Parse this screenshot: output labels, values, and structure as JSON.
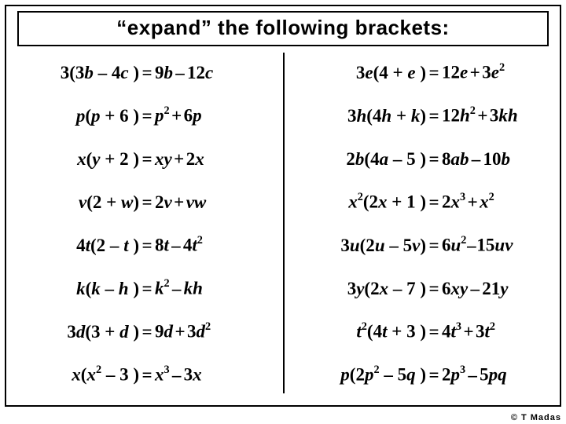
{
  "title": "“expand” the following brackets:",
  "footer": "© T Madas",
  "style": {
    "background_color": "#ffffff",
    "border_color": "#000000",
    "title_fontsize": 26,
    "row_fontsize": 23,
    "footer_fontsize": 11
  },
  "left": {
    "r1": {
      "lhs_pre": "3(3",
      "lhs_v1": "b",
      "lhs_mid": " – 4",
      "lhs_v2": "c",
      "lhs_post": " )",
      "rhs_a": "9",
      "rhs_av": "b",
      "rhs_op": "–",
      "rhs_b": "12",
      "rhs_bv": "c"
    },
    "r2": {
      "lhs_v1": "p",
      "lhs_mid1": "(",
      "lhs_v2": "p",
      "lhs_mid2": " + 6 )",
      "rhs_av": "p",
      "rhs_asup": "2",
      "rhs_op": "+",
      "rhs_b": "6",
      "rhs_bv": "p"
    },
    "r3": {
      "lhs_v1": "x",
      "lhs_mid1": "(",
      "lhs_v2": "y",
      "lhs_mid2": " + 2 )",
      "rhs_av": "xy",
      "rhs_op": "+",
      "rhs_b": "2",
      "rhs_bv": "x"
    },
    "r4": {
      "lhs_v1": "v",
      "lhs_mid1": "(2 + ",
      "lhs_v2": "w",
      "lhs_mid2": ")",
      "rhs_a": "2",
      "rhs_av": "v",
      "rhs_op": "+",
      "rhs_bv": "vw"
    },
    "r5": {
      "lhs_a": "4",
      "lhs_v1": "t",
      "lhs_mid1": "(2 – ",
      "lhs_v2": "t",
      "lhs_mid2": " )",
      "rhs_a": "8",
      "rhs_av": "t",
      "rhs_op": "–",
      "rhs_b": "4",
      "rhs_bv": "t",
      "rhs_bsup": "2"
    },
    "r6": {
      "lhs_v1": "k",
      "lhs_mid1": "(",
      "lhs_v2": "k",
      "lhs_mid2": " – ",
      "lhs_v3": "h",
      "lhs_mid3": " )",
      "rhs_av": "k",
      "rhs_asup": "2",
      "rhs_op": "–",
      "rhs_bv": "kh"
    },
    "r7": {
      "lhs_a": "3",
      "lhs_v1": "d",
      "lhs_mid1": "(3 + ",
      "lhs_v2": "d",
      "lhs_mid2": " )",
      "rhs_a": "9",
      "rhs_av": "d",
      "rhs_op": "+",
      "rhs_b": "3",
      "rhs_bv": "d",
      "rhs_bsup": "2"
    },
    "r8": {
      "lhs_v1": "x",
      "lhs_mid1": "(",
      "lhs_v2": "x",
      "lhs_sup2": "2",
      "lhs_mid2": " – 3 )",
      "rhs_av": "x",
      "rhs_asup": "3",
      "rhs_op": "–",
      "rhs_b": "3",
      "rhs_bv": "x"
    }
  },
  "right": {
    "r1": {
      "lhs_a": "3",
      "lhs_v1": "e",
      "lhs_mid1": "(4 + ",
      "lhs_v2": "e",
      "lhs_mid2": " )",
      "rhs_a": "12",
      "rhs_av": "e",
      "rhs_op": "+",
      "rhs_b": "3",
      "rhs_bv": "e",
      "rhs_bsup": "2"
    },
    "r2": {
      "lhs_a": "3",
      "lhs_v1": "h",
      "lhs_mid1": "(4",
      "lhs_v2": "h",
      "lhs_mid2": " + ",
      "lhs_v3": "k",
      "lhs_mid3": ")",
      "rhs_a": "12",
      "rhs_av": "h",
      "rhs_asup": "2",
      "rhs_op": "+",
      "rhs_b": "3",
      "rhs_bv": "kh"
    },
    "r3": {
      "lhs_a": "2",
      "lhs_v1": "b",
      "lhs_mid1": "(4",
      "lhs_v2": "a",
      "lhs_mid2": " – 5 )",
      "rhs_a": "8",
      "rhs_av": "ab",
      "rhs_op": "–",
      "rhs_b": "10",
      "rhs_bv": "b"
    },
    "r4": {
      "lhs_v1": "x",
      "lhs_sup1": "2",
      "lhs_mid1": "(2",
      "lhs_v2": "x",
      "lhs_mid2": " + 1 )",
      "rhs_a": "2",
      "rhs_av": "x",
      "rhs_asup": "3",
      "rhs_op": "+",
      "rhs_bv": "x",
      "rhs_bsup": "2"
    },
    "r5": {
      "lhs_a": "3",
      "lhs_v1": "u",
      "lhs_mid1": "(2",
      "lhs_v2": "u",
      "lhs_mid2": " – 5",
      "lhs_v3": "v",
      "lhs_mid3": ")",
      "rhs_a": "6",
      "rhs_av": "u",
      "rhs_asup": "2",
      "rhs_op": "–",
      "rhs_b": "15",
      "rhs_bv": "uv"
    },
    "r6": {
      "lhs_a": "3",
      "lhs_v1": "y",
      "lhs_mid1": "(2",
      "lhs_v2": "x",
      "lhs_mid2": " – 7 )",
      "rhs_a": "6",
      "rhs_av": "xy",
      "rhs_op": "–",
      "rhs_b": "21",
      "rhs_bv": "y"
    },
    "r7": {
      "lhs_v1": "t",
      "lhs_sup1": "2",
      "lhs_mid1": "(4",
      "lhs_v2": "t",
      "lhs_mid2": " + 3 )",
      "rhs_a": "4",
      "rhs_av": "t",
      "rhs_asup": "3",
      "rhs_op": "+",
      "rhs_b": "3",
      "rhs_bv": "t",
      "rhs_bsup": "2"
    },
    "r8": {
      "lhs_v1": "p",
      "lhs_mid1": "(2",
      "lhs_v2": "p",
      "lhs_sup2": "2",
      "lhs_mid2": " – 5",
      "lhs_v3": "q",
      "lhs_mid3": " )",
      "rhs_a": "2",
      "rhs_av": "p",
      "rhs_asup": "3",
      "rhs_op": "–",
      "rhs_b": "5",
      "rhs_bv": "pq"
    }
  }
}
